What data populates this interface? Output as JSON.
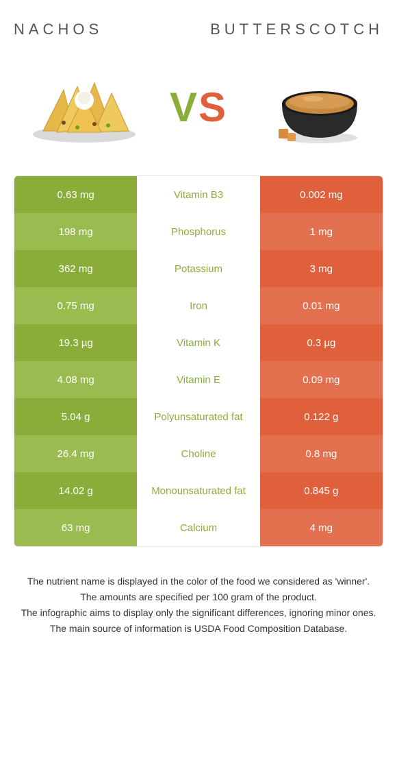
{
  "header": {
    "left_title": "NACHOS",
    "right_title": "BUTTERSCOTCH"
  },
  "vs": {
    "v": "V",
    "s": "S"
  },
  "colors": {
    "nachos_base": "#8aad3a",
    "nachos_alt": "#9abb4f",
    "butter_base": "#e0603c",
    "butter_alt": "#e3714f",
    "mid_text_winner_nachos": "#8aad3a",
    "mid_text_winner_butter": "#e0603c",
    "footer_text": "#333333"
  },
  "rows": [
    {
      "left": "0.63 mg",
      "mid": "Vitamin B3",
      "right": "0.002 mg",
      "winner": "nachos"
    },
    {
      "left": "198 mg",
      "mid": "Phosphorus",
      "right": "1 mg",
      "winner": "nachos"
    },
    {
      "left": "362 mg",
      "mid": "Potassium",
      "right": "3 mg",
      "winner": "nachos"
    },
    {
      "left": "0.75 mg",
      "mid": "Iron",
      "right": "0.01 mg",
      "winner": "nachos"
    },
    {
      "left": "19.3 µg",
      "mid": "Vitamin K",
      "right": "0.3 µg",
      "winner": "nachos"
    },
    {
      "left": "4.08 mg",
      "mid": "Vitamin E",
      "right": "0.09 mg",
      "winner": "nachos"
    },
    {
      "left": "5.04 g",
      "mid": "Polyunsaturated fat",
      "right": "0.122 g",
      "winner": "nachos"
    },
    {
      "left": "26.4 mg",
      "mid": "Choline",
      "right": "0.8 mg",
      "winner": "nachos"
    },
    {
      "left": "14.02 g",
      "mid": "Monounsaturated fat",
      "right": "0.845 g",
      "winner": "nachos"
    },
    {
      "left": "63 mg",
      "mid": "Calcium",
      "right": "4 mg",
      "winner": "nachos"
    }
  ],
  "footer": {
    "line1": "The nutrient name is displayed in the color of the food we considered as 'winner'.",
    "line2": "The amounts are specified per 100 gram of the product.",
    "line3": "The infographic aims to display only the significant differences, ignoring minor ones.",
    "line4": "The main source of information is USDA Food Composition Database."
  }
}
